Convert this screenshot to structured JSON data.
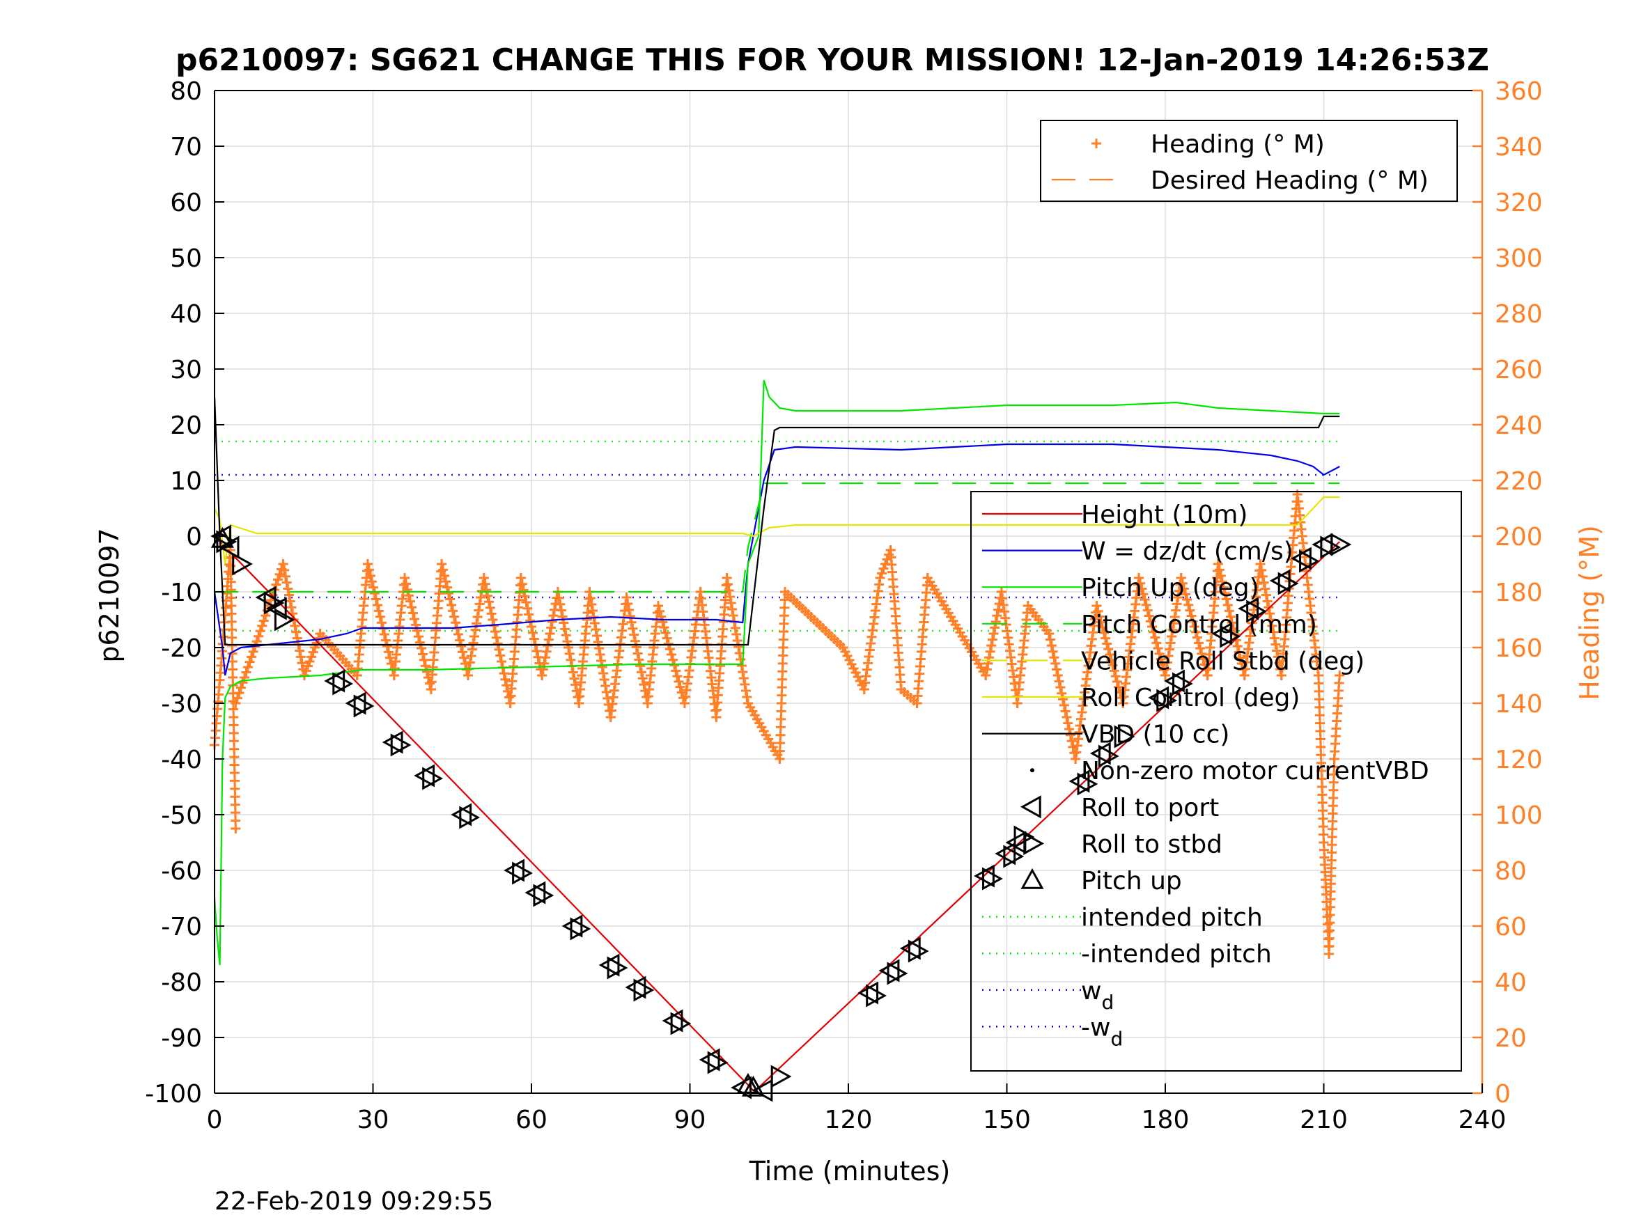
{
  "chart_data": {
    "type": "line",
    "title": "p6210097: SG621 CHANGE THIS FOR YOUR MISSION! 12-Jan-2019 14:26:53Z",
    "xlabel": "Time (minutes)",
    "ylabel_left": "p6210097",
    "ylabel_right": "Heading (°M)",
    "xlim": [
      0,
      240
    ],
    "ylim_left": [
      -100,
      80
    ],
    "ylim_right": [
      0,
      360
    ],
    "xticks": [
      "0",
      "30",
      "60",
      "90",
      "120",
      "150",
      "180",
      "210",
      "240"
    ],
    "yticks_left": [
      "80",
      "70",
      "60",
      "50",
      "40",
      "30",
      "20",
      "10",
      "0",
      "-10",
      "-20",
      "-30",
      "-40",
      "-50",
      "-60",
      "-70",
      "-80",
      "-90",
      "-100"
    ],
    "yticks_right": [
      "360",
      "340",
      "320",
      "300",
      "280",
      "260",
      "240",
      "220",
      "200",
      "180",
      "160",
      "140",
      "120",
      "100",
      "80",
      "60",
      "40",
      "20",
      "0"
    ],
    "grid": true,
    "footer": "22-Feb-2019 09:29:55",
    "legend_top": [
      {
        "label": "Heading (° M)",
        "color": "#ff7f27",
        "style": "plus"
      },
      {
        "label": "Desired Heading (° M)",
        "color": "#ff7f27",
        "style": "dash"
      }
    ],
    "legend_bottom": [
      {
        "label": "Height (10m)",
        "color": "#e00000",
        "style": "solid"
      },
      {
        "label": "W = dz/dt (cm/s)",
        "color": "#0000e6",
        "style": "solid"
      },
      {
        "label": "Pitch Up (deg)",
        "color": "#00e600",
        "style": "solid"
      },
      {
        "label": "Pitch Control (mm)",
        "color": "#00e600",
        "style": "dash"
      },
      {
        "label": "Vehicle Roll Stbd (deg)",
        "color": "#e6e600",
        "style": "dash"
      },
      {
        "label": "Roll Control (deg)",
        "color": "#e6e600",
        "style": "solid"
      },
      {
        "label": "VBD (10 cc)",
        "color": "#000000",
        "style": "solid"
      },
      {
        "label": "Non-zero motor currentVBD",
        "color": "#000000",
        "style": "dot"
      },
      {
        "label": "Roll to port",
        "color": "#000000",
        "style": "tri-left"
      },
      {
        "label": "Roll to stbd",
        "color": "#000000",
        "style": "tri-right"
      },
      {
        "label": "Pitch up",
        "color": "#000000",
        "style": "tri-up"
      },
      {
        "label": "intended pitch",
        "color": "#00e600",
        "style": "dotted"
      },
      {
        "label": "-intended pitch",
        "color": "#00e600",
        "style": "dotted"
      },
      {
        "label": "w",
        "sub": "d",
        "color": "#0000e6",
        "style": "dotted"
      },
      {
        "label": "-w",
        "sub": "d",
        "color": "#0000e6",
        "style": "dotted"
      }
    ],
    "reference_lines": {
      "intended_pitch": 17,
      "neg_intended_pitch": -17,
      "w_d": 11,
      "neg_w_d": -11
    },
    "series": [
      {
        "name": "Height (10m)",
        "color": "#e00000",
        "x": [
          0,
          101,
          102,
          103,
          213
        ],
        "y": [
          0,
          -98.5,
          -99.5,
          -99,
          -1
        ]
      },
      {
        "name": "W = dz/dt (cm/s)",
        "color": "#0000e6",
        "x": [
          0,
          1.5,
          2,
          3,
          5,
          10,
          20,
          25,
          28,
          35,
          45,
          55,
          65,
          75,
          85,
          95,
          100,
          101,
          104,
          106,
          110,
          130,
          150,
          170,
          190,
          200,
          205,
          208,
          210,
          212,
          213
        ],
        "y": [
          -10,
          -20,
          -25,
          -21,
          -20,
          -19.5,
          -18.5,
          -17.5,
          -16.5,
          -16.5,
          -16.5,
          -15.8,
          -15,
          -14.5,
          -15,
          -15,
          -15.5,
          -5,
          10,
          15.5,
          16,
          15.5,
          16.5,
          16.5,
          15.5,
          14.5,
          13.5,
          12.5,
          11,
          12,
          12.5
        ]
      },
      {
        "name": "Pitch Up (deg)",
        "color": "#00e600",
        "x": [
          0,
          0.5,
          1,
          1.5,
          2,
          3,
          5,
          10,
          20,
          28,
          40,
          60,
          80,
          95,
          100,
          101,
          103,
          104,
          105,
          107,
          110,
          130,
          150,
          170,
          182,
          190,
          200,
          210,
          213
        ],
        "y": [
          -65,
          -72,
          -77,
          -40,
          -29,
          -27,
          -26,
          -25.5,
          -25,
          -24,
          -24,
          -23.5,
          -23,
          -23,
          -23,
          -5,
          0,
          28,
          25,
          23,
          22.5,
          22.5,
          23.5,
          23.5,
          24,
          23,
          22.5,
          22,
          22
        ]
      },
      {
        "name": "Pitch Control (mm)",
        "color": "#00e600",
        "x": [
          0,
          100,
          101,
          104,
          213
        ],
        "y": [
          -10,
          -10,
          -2,
          9.5,
          9.5
        ]
      },
      {
        "name": "Roll Control (deg)",
        "color": "#e6e600",
        "x": [
          0,
          1,
          2,
          3,
          8,
          20,
          40,
          60,
          80,
          95,
          100,
          102,
          105,
          110,
          130,
          150,
          170,
          190,
          205,
          210,
          213
        ],
        "y": [
          5,
          3,
          -5,
          2,
          0.5,
          0.5,
          0.5,
          0.5,
          0.5,
          0.5,
          0.5,
          0,
          1.5,
          2,
          2,
          2,
          2,
          2,
          2,
          7,
          7
        ]
      },
      {
        "name": "VBD (10 cc)",
        "color": "#000000",
        "x": [
          0,
          1,
          2,
          10,
          50,
          100,
          101,
          104,
          106,
          107,
          150,
          209,
          210,
          213
        ],
        "y": [
          25,
          0,
          -19.5,
          -19.5,
          -19.5,
          -19.5,
          -19.5,
          5,
          19,
          19.5,
          19.5,
          19.5,
          21.5,
          21.5
        ]
      }
    ],
    "heading_segments": [
      {
        "x0": 0,
        "x1": 3,
        "h0": 125,
        "h1": 195
      },
      {
        "x0": 3,
        "x1": 4,
        "h0": 195,
        "h1": 95
      },
      {
        "x0": 4,
        "x1": 13,
        "h0": 140,
        "h1": 190
      },
      {
        "x0": 13,
        "x1": 17,
        "h0": 190,
        "h1": 150
      },
      {
        "x0": 17,
        "x1": 20,
        "h0": 150,
        "h1": 165
      },
      {
        "x0": 20,
        "x1": 27,
        "h0": 165,
        "h1": 150
      },
      {
        "x0": 27,
        "x1": 29,
        "h0": 150,
        "h1": 190
      },
      {
        "x0": 29,
        "x1": 34,
        "h0": 190,
        "h1": 150
      },
      {
        "x0": 34,
        "x1": 36,
        "h0": 150,
        "h1": 185
      },
      {
        "x0": 36,
        "x1": 41,
        "h0": 185,
        "h1": 145
      },
      {
        "x0": 41,
        "x1": 43,
        "h0": 145,
        "h1": 190
      },
      {
        "x0": 43,
        "x1": 48,
        "h0": 190,
        "h1": 150
      },
      {
        "x0": 48,
        "x1": 51,
        "h0": 150,
        "h1": 185
      },
      {
        "x0": 51,
        "x1": 56,
        "h0": 185,
        "h1": 140
      },
      {
        "x0": 56,
        "x1": 58,
        "h0": 140,
        "h1": 185
      },
      {
        "x0": 58,
        "x1": 62,
        "h0": 185,
        "h1": 150
      },
      {
        "x0": 62,
        "x1": 65,
        "h0": 150,
        "h1": 180
      },
      {
        "x0": 65,
        "x1": 69,
        "h0": 180,
        "h1": 140
      },
      {
        "x0": 69,
        "x1": 71,
        "h0": 140,
        "h1": 180
      },
      {
        "x0": 71,
        "x1": 75,
        "h0": 180,
        "h1": 135
      },
      {
        "x0": 75,
        "x1": 78,
        "h0": 135,
        "h1": 178
      },
      {
        "x0": 78,
        "x1": 82,
        "h0": 178,
        "h1": 140
      },
      {
        "x0": 82,
        "x1": 84,
        "h0": 140,
        "h1": 175
      },
      {
        "x0": 84,
        "x1": 89,
        "h0": 175,
        "h1": 140
      },
      {
        "x0": 89,
        "x1": 92,
        "h0": 140,
        "h1": 180
      },
      {
        "x0": 92,
        "x1": 95,
        "h0": 180,
        "h1": 135
      },
      {
        "x0": 95,
        "x1": 97,
        "h0": 135,
        "h1": 185
      },
      {
        "x0": 97,
        "x1": 101,
        "h0": 185,
        "h1": 140
      },
      {
        "x0": 101,
        "x1": 107,
        "h0": 140,
        "h1": 120
      },
      {
        "x0": 107,
        "x1": 108,
        "h0": 120,
        "h1": 180
      },
      {
        "x0": 108,
        "x1": 119,
        "h0": 180,
        "h1": 160
      },
      {
        "x0": 119,
        "x1": 123,
        "h0": 160,
        "h1": 145
      },
      {
        "x0": 123,
        "x1": 126,
        "h0": 145,
        "h1": 185
      },
      {
        "x0": 126,
        "x1": 128,
        "h0": 185,
        "h1": 195
      },
      {
        "x0": 128,
        "x1": 130,
        "h0": 195,
        "h1": 145
      },
      {
        "x0": 130,
        "x1": 133,
        "h0": 145,
        "h1": 140
      },
      {
        "x0": 133,
        "x1": 135,
        "h0": 140,
        "h1": 185
      },
      {
        "x0": 135,
        "x1": 146,
        "h0": 185,
        "h1": 150
      },
      {
        "x0": 146,
        "x1": 149,
        "h0": 150,
        "h1": 180
      },
      {
        "x0": 149,
        "x1": 152,
        "h0": 180,
        "h1": 140
      },
      {
        "x0": 152,
        "x1": 154,
        "h0": 140,
        "h1": 175
      },
      {
        "x0": 154,
        "x1": 158,
        "h0": 175,
        "h1": 165
      },
      {
        "x0": 158,
        "x1": 163,
        "h0": 165,
        "h1": 120
      },
      {
        "x0": 163,
        "x1": 167,
        "h0": 120,
        "h1": 175
      },
      {
        "x0": 167,
        "x1": 172,
        "h0": 175,
        "h1": 140
      },
      {
        "x0": 172,
        "x1": 175,
        "h0": 140,
        "h1": 185
      },
      {
        "x0": 175,
        "x1": 180,
        "h0": 185,
        "h1": 150
      },
      {
        "x0": 180,
        "x1": 183,
        "h0": 150,
        "h1": 185
      },
      {
        "x0": 183,
        "x1": 188,
        "h0": 185,
        "h1": 150
      },
      {
        "x0": 188,
        "x1": 190,
        "h0": 150,
        "h1": 190
      },
      {
        "x0": 190,
        "x1": 195,
        "h0": 190,
        "h1": 150
      },
      {
        "x0": 195,
        "x1": 198,
        "h0": 150,
        "h1": 190
      },
      {
        "x0": 198,
        "x1": 202,
        "h0": 190,
        "h1": 150
      },
      {
        "x0": 202,
        "x1": 205,
        "h0": 150,
        "h1": 215
      },
      {
        "x0": 205,
        "x1": 209,
        "h0": 215,
        "h1": 150
      },
      {
        "x0": 209,
        "x1": 210,
        "h0": 150,
        "h1": 90
      },
      {
        "x0": 210,
        "x1": 211,
        "h0": 90,
        "h1": 50
      },
      {
        "x0": 211,
        "x1": 212,
        "h0": 50,
        "h1": 120
      },
      {
        "x0": 212,
        "x1": 213,
        "h0": 120,
        "h1": 150
      }
    ],
    "markers": {
      "roll_to_port": [
        [
          1.5,
          0
        ],
        [
          3,
          -2
        ],
        [
          10,
          -11
        ],
        [
          12,
          -13
        ],
        [
          23,
          -26
        ],
        [
          27,
          -30
        ],
        [
          34,
          -37
        ],
        [
          40,
          -43
        ],
        [
          47,
          -50
        ],
        [
          57,
          -60
        ],
        [
          61,
          -64
        ],
        [
          68,
          -70
        ],
        [
          75,
          -77
        ],
        [
          80,
          -81
        ],
        [
          87,
          -87
        ],
        [
          94,
          -94
        ],
        [
          100,
          -99
        ],
        [
          104,
          -99.5
        ],
        [
          124,
          -82
        ],
        [
          128,
          -78
        ],
        [
          132,
          -74
        ],
        [
          146,
          -61
        ],
        [
          150,
          -57
        ],
        [
          152,
          -55
        ],
        [
          164,
          -44
        ],
        [
          168,
          -39
        ],
        [
          179,
          -29
        ],
        [
          182,
          -26
        ],
        [
          191,
          -17.5
        ],
        [
          196,
          -13
        ],
        [
          202,
          -8
        ],
        [
          206,
          -4
        ],
        [
          210,
          -1.5
        ]
      ],
      "roll_to_stbd": [
        [
          2,
          -1
        ],
        [
          5,
          -5
        ],
        [
          11,
          -12
        ],
        [
          13,
          -15
        ],
        [
          24,
          -26.5
        ],
        [
          28,
          -30.5
        ],
        [
          35,
          -37.5
        ],
        [
          41,
          -43.5
        ],
        [
          48,
          -50.5
        ],
        [
          58,
          -60.5
        ],
        [
          62,
          -64.5
        ],
        [
          69,
          -70.5
        ],
        [
          76,
          -77.5
        ],
        [
          81,
          -81.5
        ],
        [
          88,
          -87.5
        ],
        [
          95,
          -94.5
        ],
        [
          107,
          -97
        ],
        [
          125,
          -82.5
        ],
        [
          129,
          -78.5
        ],
        [
          133,
          -74.5
        ],
        [
          147,
          -61.5
        ],
        [
          151,
          -57.5
        ],
        [
          153,
          -54
        ],
        [
          165,
          -44.5
        ],
        [
          169,
          -39.5
        ],
        [
          172,
          -36
        ],
        [
          180,
          -29.5
        ],
        [
          183,
          -26.5
        ],
        [
          192,
          -18
        ],
        [
          197,
          -13.5
        ],
        [
          203,
          -8.5
        ],
        [
          207,
          -4.5
        ],
        [
          211,
          -2
        ],
        [
          213,
          -1.5
        ]
      ],
      "pitch_up": [
        [
          1.5,
          -0.5
        ],
        [
          101,
          -98.5
        ],
        [
          102,
          -99
        ]
      ]
    }
  }
}
